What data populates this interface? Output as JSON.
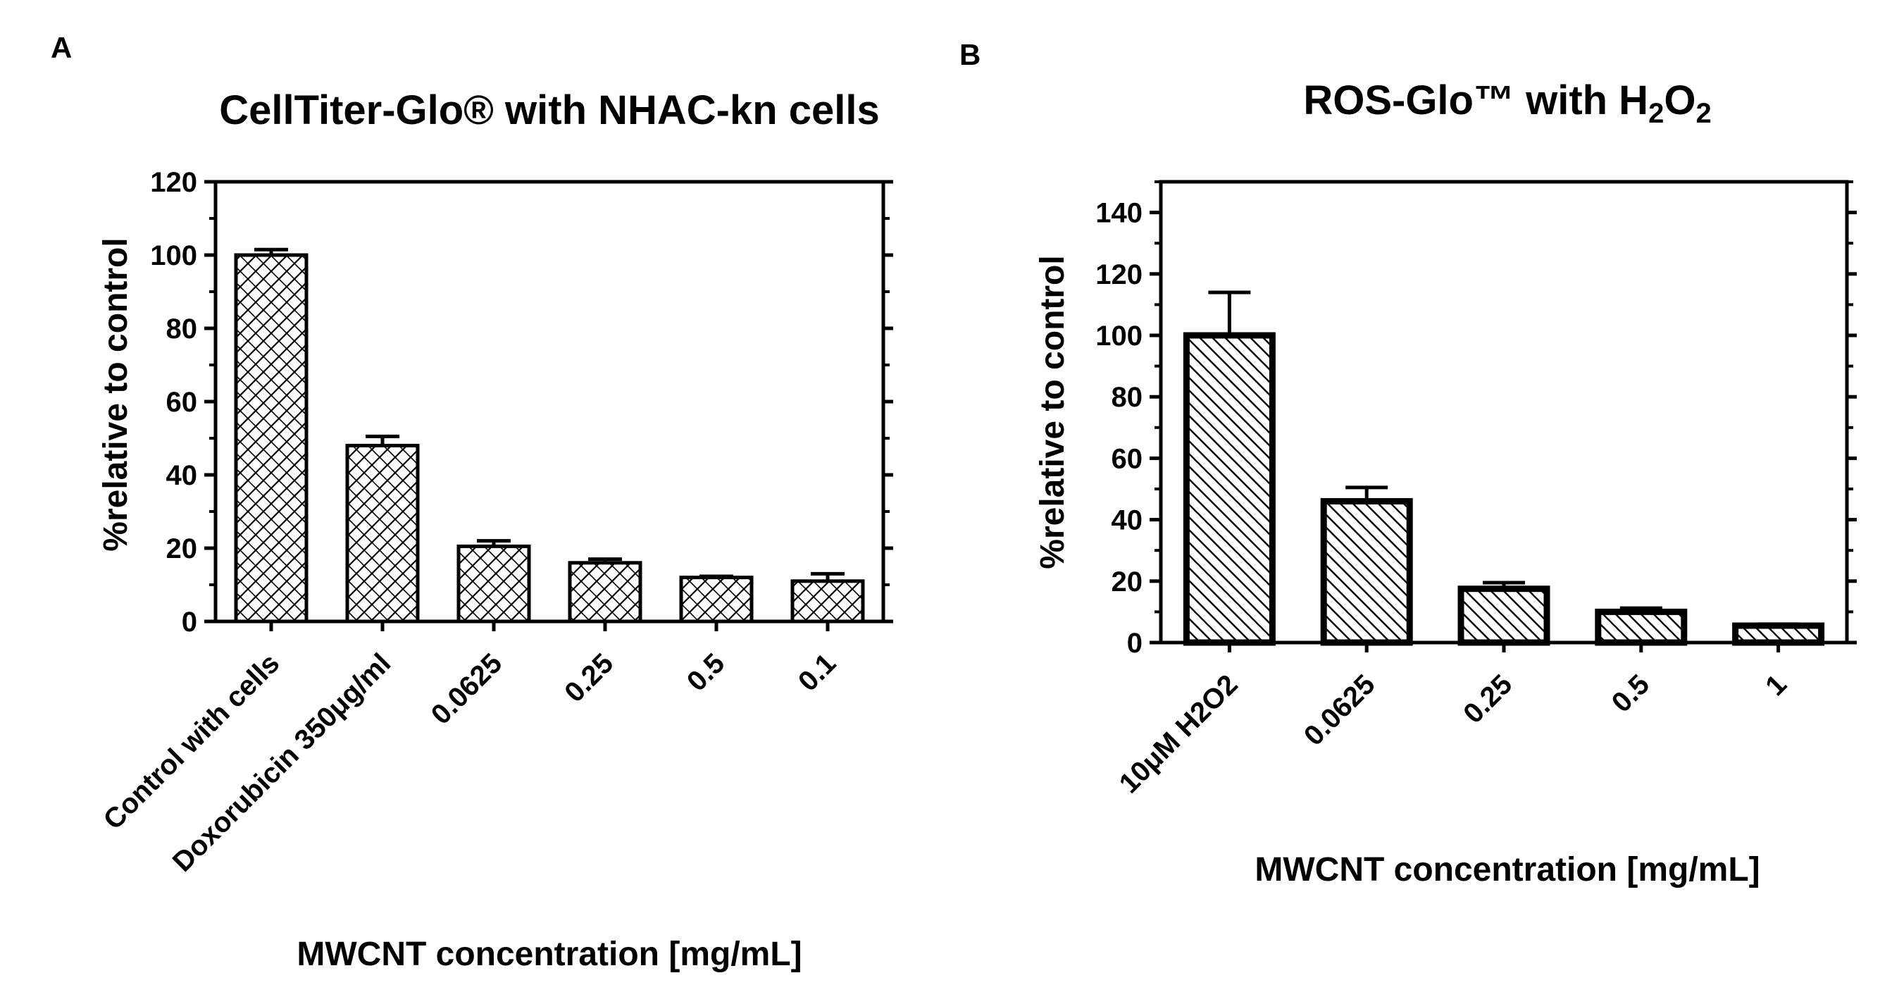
{
  "chart_data": [
    {
      "panel": "A",
      "type": "bar",
      "title": "CellTiter-Glo® with NHAC-kn cells",
      "xlabel": "MWCNT concentration [mg/mL]",
      "ylabel": "%relative to control",
      "ylim": [
        0,
        120
      ],
      "yticks": [
        0,
        20,
        40,
        60,
        80,
        100,
        120
      ],
      "categories": [
        "Control with cells",
        "Doxorubicin 350μg/ml",
        "0.0625",
        "0.25",
        "0.5",
        "0.1"
      ],
      "values": [
        100,
        48,
        20.5,
        16,
        12,
        11
      ],
      "errors": [
        1.5,
        2.5,
        1.5,
        1,
        0.3,
        2
      ],
      "pattern": "crosshatch",
      "grid": false
    },
    {
      "panel": "B",
      "type": "bar",
      "title_main": "ROS-Glo™ with H",
      "title_sub1": "2",
      "title_mid": "O",
      "title_sub2": "2",
      "xlabel": "MWCNT concentration [mg/mL]",
      "ylabel": "%relative to control",
      "ylim": [
        0,
        150
      ],
      "yticks": [
        0,
        20,
        40,
        60,
        80,
        100,
        120,
        140
      ],
      "categories": [
        "10μM H2O2",
        "0.0625",
        "0.25",
        "0.5",
        "1"
      ],
      "values": [
        100,
        46,
        17.5,
        10,
        5.5
      ],
      "errors": [
        14,
        4.5,
        2,
        1.2,
        0.5
      ],
      "pattern": "diagonal",
      "grid": false
    }
  ]
}
